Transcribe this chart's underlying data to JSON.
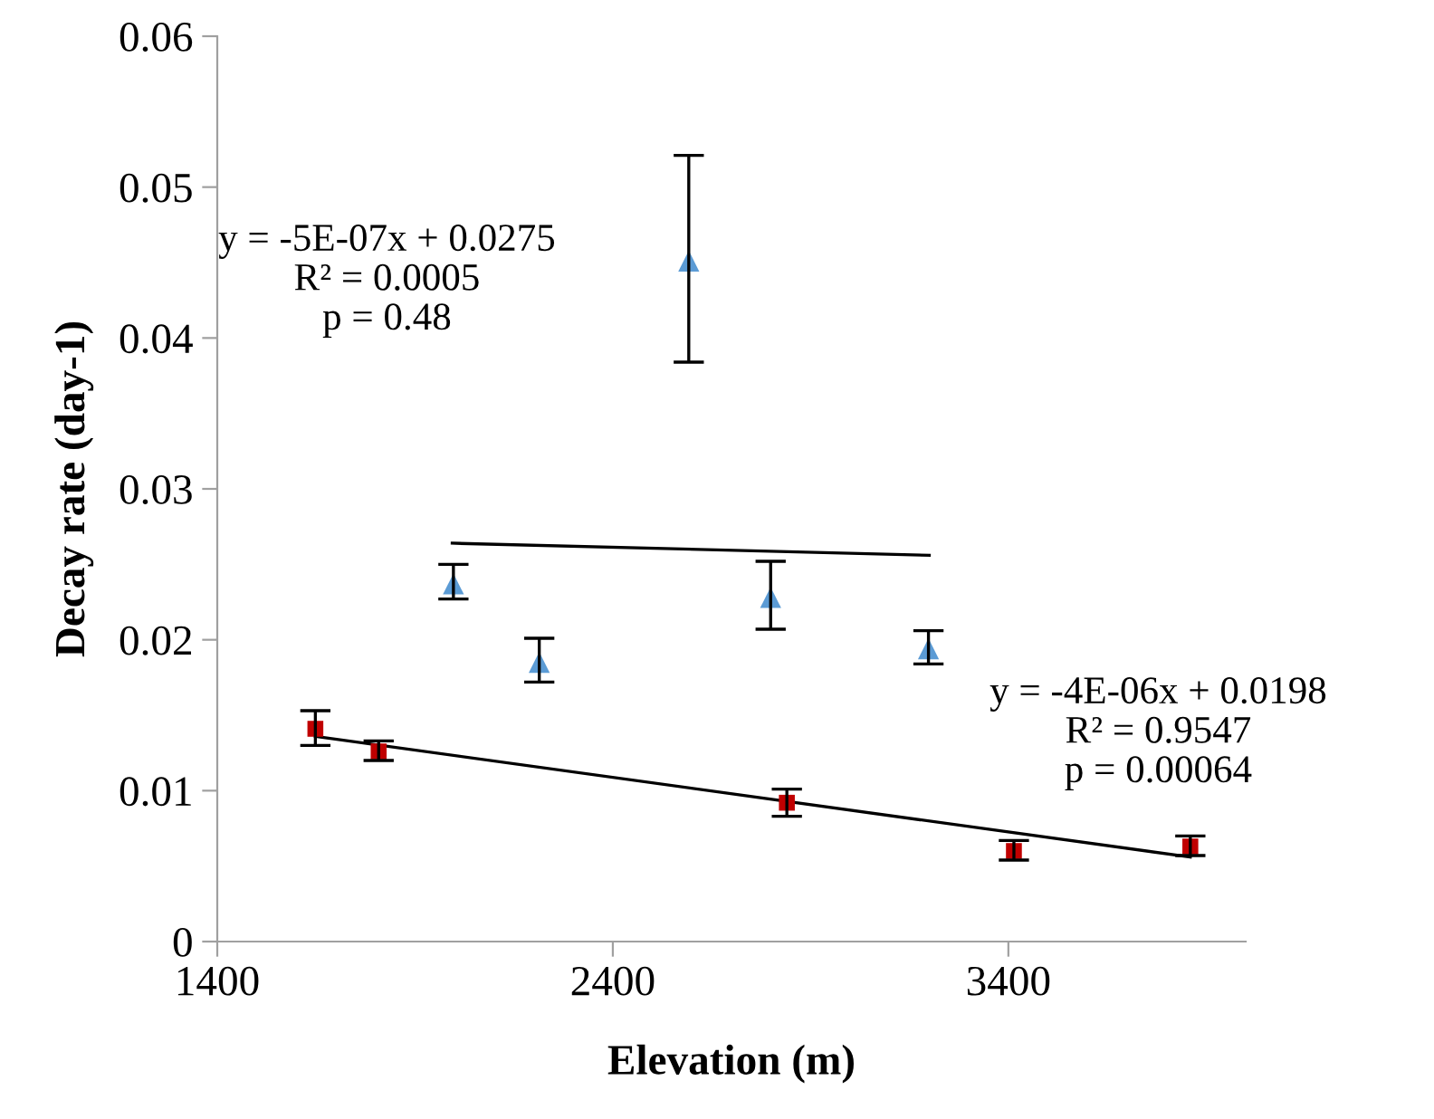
{
  "chart_data": {
    "type": "scatter",
    "xlabel": "Elevation (m)",
    "ylabel": "Decay rate (day-1)",
    "xlim": [
      1400,
      4000
    ],
    "xticks": [
      1400,
      2400,
      3400
    ],
    "ylim": [
      0,
      0.06
    ],
    "yticks": [
      0,
      0.01,
      0.02,
      0.03,
      0.04,
      0.05,
      0.06
    ],
    "grid": false,
    "series": [
      {
        "color": "#5b9bd5",
        "marker": "triangle",
        "x": [
          1997,
          2214,
          2592,
          2799,
          3198
        ],
        "values": [
          0.0237,
          0.0185,
          0.0451,
          0.0228,
          0.0194
        ],
        "errors": [
          [
            0.0227,
            0.025
          ],
          [
            0.0172,
            0.0201
          ],
          [
            0.0384,
            0.0521
          ],
          [
            0.0207,
            0.0252
          ],
          [
            0.0184,
            0.0206
          ]
        ]
      },
      {
        "color": "#c00000",
        "marker": "square",
        "x": [
          1648,
          1808,
          2840,
          3414,
          3860
        ],
        "values": [
          0.0141,
          0.0126,
          0.0092,
          0.006,
          0.0063
        ],
        "errors": [
          [
            0.013,
            0.0153
          ],
          [
            0.012,
            0.0133
          ],
          [
            0.0083,
            0.0101
          ],
          [
            0.0054,
            0.0067
          ],
          [
            0.0057,
            0.007
          ]
        ]
      },
      {
        "type": "line",
        "color": "#000000",
        "marker": "none",
        "x": [
          1994,
          3200
        ],
        "values": [
          0.0264,
          0.0256
        ]
      },
      {
        "type": "line",
        "color": "#000000",
        "marker": "none",
        "x": [
          1648,
          3860
        ],
        "values": [
          0.0136,
          0.0056
        ]
      }
    ],
    "annotations": [
      "y = -5E-07x + 0.0275\nR² = 0.0005\np = 0.48",
      "y = -4E-06x + 0.0198\nR² = 0.9547\np = 0.00064"
    ]
  }
}
